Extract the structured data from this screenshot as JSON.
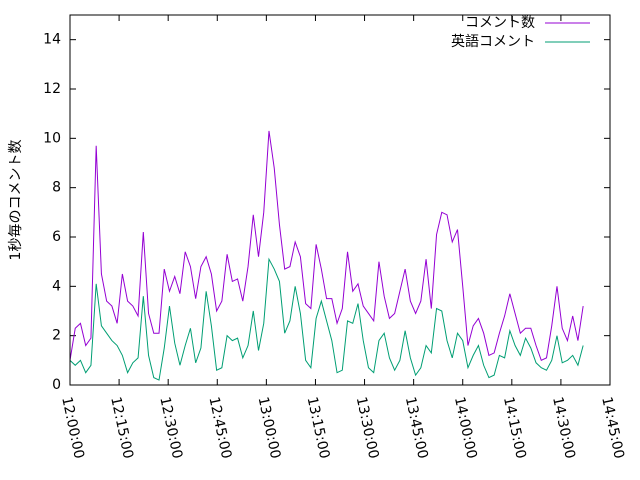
{
  "chart_data": {
    "type": "line",
    "ylabel": "1秒毎のコメント数",
    "xlim": [
      "12:00:00",
      "14:45:00"
    ],
    "xticks": [
      "12:00:00",
      "12:15:00",
      "12:30:00",
      "12:45:00",
      "13:00:00",
      "13:15:00",
      "13:30:00",
      "13:45:00",
      "14:00:00",
      "14:15:00",
      "14:30:00",
      "14:45:00"
    ],
    "ylim": [
      0,
      15
    ],
    "yticks": [
      0,
      2,
      4,
      6,
      8,
      10,
      12,
      14
    ],
    "legend": "upper right",
    "x": [
      "12:00:00",
      "12:01:36",
      "12:03:12",
      "12:04:48",
      "12:06:24",
      "12:08:00",
      "12:09:36",
      "12:11:12",
      "12:12:48",
      "12:14:24",
      "12:16:00",
      "12:17:36",
      "12:19:12",
      "12:20:48",
      "12:22:24",
      "12:24:00",
      "12:25:36",
      "12:27:12",
      "12:28:48",
      "12:30:24",
      "12:32:00",
      "12:33:36",
      "12:35:12",
      "12:36:48",
      "12:38:24",
      "12:40:00",
      "12:41:36",
      "12:43:12",
      "12:44:48",
      "12:46:24",
      "12:48:00",
      "12:49:36",
      "12:51:12",
      "12:52:48",
      "12:54:24",
      "12:56:00",
      "12:57:36",
      "12:59:12",
      "13:00:48",
      "13:02:24",
      "13:04:00",
      "13:05:36",
      "13:07:12",
      "13:08:48",
      "13:10:24",
      "13:12:00",
      "13:13:36",
      "13:15:12",
      "13:16:48",
      "13:18:24",
      "13:20:00",
      "13:21:36",
      "13:23:12",
      "13:24:48",
      "13:26:24",
      "13:28:00",
      "13:29:36",
      "13:31:12",
      "13:32:48",
      "13:34:24",
      "13:36:00",
      "13:37:36",
      "13:39:12",
      "13:40:48",
      "13:42:24",
      "13:44:00",
      "13:45:36",
      "13:47:12",
      "13:48:48",
      "13:50:24",
      "13:52:00",
      "13:53:36",
      "13:55:12",
      "13:56:48",
      "13:58:24",
      "14:00:00",
      "14:01:36",
      "14:03:12",
      "14:04:48",
      "14:06:24",
      "14:08:00",
      "14:09:36",
      "14:11:12",
      "14:12:48",
      "14:14:24",
      "14:16:00",
      "14:17:36",
      "14:19:12",
      "14:20:48",
      "14:22:24",
      "14:24:00",
      "14:25:36",
      "14:27:12",
      "14:28:48",
      "14:30:24",
      "14:32:00",
      "14:33:36",
      "14:35:12",
      "14:36:48"
    ],
    "series": [
      {
        "name": "コメント数",
        "color": "#9400d3",
        "values": [
          1.0,
          2.3,
          2.5,
          1.6,
          1.9,
          9.7,
          4.5,
          3.4,
          3.2,
          2.5,
          4.5,
          3.4,
          3.2,
          2.8,
          6.2,
          2.9,
          2.1,
          2.1,
          4.7,
          3.8,
          4.4,
          3.7,
          5.4,
          4.8,
          3.5,
          4.8,
          5.2,
          4.5,
          3.0,
          3.4,
          5.3,
          4.2,
          4.3,
          3.4,
          4.8,
          6.9,
          5.2,
          7.0,
          10.3,
          8.8,
          6.5,
          4.7,
          4.8,
          5.8,
          5.2,
          3.3,
          3.1,
          5.7,
          4.7,
          3.5,
          3.5,
          2.5,
          3.1,
          5.4,
          3.8,
          4.1,
          3.2,
          2.9,
          2.6,
          5.0,
          3.6,
          2.7,
          2.9,
          3.8,
          4.7,
          3.4,
          2.9,
          3.4,
          5.1,
          3.1,
          6.1,
          7.0,
          6.9,
          5.8,
          6.3,
          4.0,
          1.6,
          2.4,
          2.7,
          2.1,
          1.2,
          1.3,
          2.1,
          2.8,
          3.7,
          2.9,
          2.1,
          2.3,
          2.3,
          1.6,
          1.0,
          1.1,
          2.4,
          4.0,
          2.3,
          1.8,
          2.8,
          1.8,
          3.2
        ]
      },
      {
        "name": "英語コメント",
        "color": "#009e73",
        "values": [
          1.0,
          0.8,
          1.0,
          0.5,
          0.8,
          4.1,
          2.4,
          2.1,
          1.8,
          1.6,
          1.2,
          0.5,
          0.9,
          1.1,
          3.6,
          1.2,
          0.3,
          0.2,
          1.5,
          3.2,
          1.7,
          0.8,
          1.6,
          2.3,
          0.9,
          1.5,
          3.8,
          2.4,
          0.6,
          0.7,
          2.0,
          1.8,
          1.9,
          1.1,
          1.6,
          3.0,
          1.4,
          2.5,
          5.1,
          4.7,
          4.2,
          2.1,
          2.6,
          4.0,
          2.9,
          1.0,
          0.7,
          2.7,
          3.4,
          2.6,
          1.8,
          0.5,
          0.6,
          2.6,
          2.5,
          3.3,
          1.8,
          0.7,
          0.5,
          1.8,
          2.1,
          1.1,
          0.6,
          1.0,
          2.2,
          1.1,
          0.4,
          0.7,
          1.6,
          1.3,
          3.1,
          3.0,
          1.8,
          1.1,
          2.1,
          1.8,
          0.7,
          1.2,
          1.6,
          0.8,
          0.3,
          0.4,
          1.2,
          1.1,
          2.2,
          1.6,
          1.2,
          1.9,
          1.5,
          0.9,
          0.7,
          0.6,
          1.0,
          2.0,
          0.9,
          1.0,
          1.2,
          0.8,
          1.6
        ]
      }
    ]
  }
}
